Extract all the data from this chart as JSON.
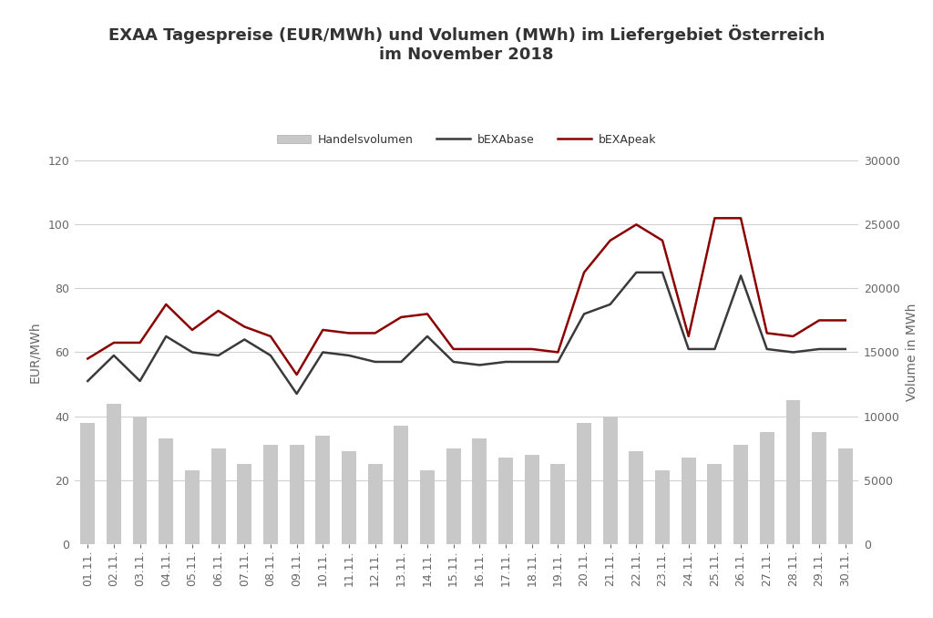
{
  "title": "EXAA Tagespreise (EUR/MWh) und Volumen (MWh) im Liefergebiet Österreich\nim November 2018",
  "ylabel_left": "EUR/MWh",
  "ylabel_right": "Volume in MWh",
  "dates": [
    "01.11.",
    "02.11.",
    "03.11.",
    "04.11.",
    "05.11.",
    "06.11.",
    "07.11.",
    "08.11.",
    "09.11.",
    "10.11.",
    "11.11.",
    "12.11.",
    "13.11.",
    "14.11.",
    "15.11.",
    "16.11.",
    "17.11.",
    "18.11.",
    "19.11.",
    "20.11.",
    "21.11.",
    "22.11.",
    "23.11.",
    "24.11.",
    "25.11.",
    "26.11.",
    "27.11.",
    "28.11.",
    "29.11.",
    "30.11."
  ],
  "bEXAbase": [
    51,
    59,
    51,
    65,
    60,
    59,
    64,
    59,
    47,
    60,
    59,
    57,
    57,
    65,
    57,
    56,
    57,
    57,
    57,
    72,
    75,
    85,
    85,
    61,
    61,
    84,
    61,
    60,
    61,
    61
  ],
  "bEXApeak": [
    58,
    63,
    63,
    75,
    67,
    73,
    68,
    65,
    53,
    67,
    66,
    66,
    71,
    72,
    61,
    61,
    61,
    61,
    60,
    85,
    95,
    100,
    95,
    65,
    102,
    102,
    66,
    65,
    70,
    70
  ],
  "Handelsvolumen": [
    38,
    44,
    40,
    33,
    23,
    30,
    25,
    31,
    31,
    34,
    29,
    25,
    37,
    23,
    30,
    33,
    27,
    28,
    25,
    38,
    40,
    29,
    23,
    27,
    25,
    31,
    35,
    45,
    35,
    30
  ],
  "ylim_left": [
    0,
    120
  ],
  "ylim_right": [
    0,
    30000
  ],
  "yticks_left": [
    0,
    20,
    40,
    60,
    80,
    100,
    120
  ],
  "yticks_right": [
    0,
    5000,
    10000,
    15000,
    20000,
    25000,
    30000
  ],
  "bar_color": "#c8c8c8",
  "base_color": "#3a3a3a",
  "peak_color": "#8b0000",
  "background_color": "#ffffff",
  "grid_color": "#d0d0d0",
  "title_fontsize": 13,
  "label_fontsize": 10,
  "tick_fontsize": 9,
  "legend_labels": [
    "Handelsvolumen",
    "bEXAbase",
    "bEXApeak"
  ]
}
